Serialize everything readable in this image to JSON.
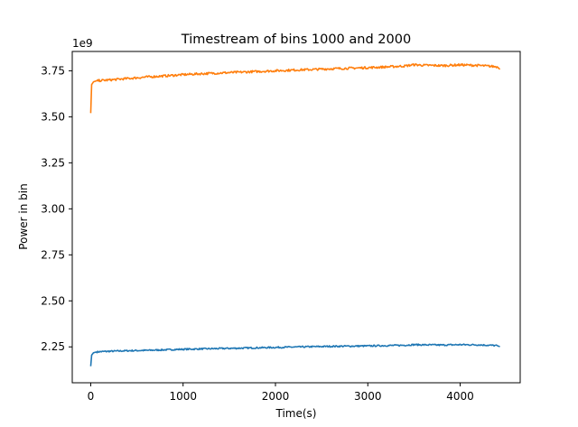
{
  "chart_data": {
    "type": "line",
    "title": "Timestream of bins 1000 and 2000",
    "xlabel": "Time(s)",
    "ylabel": "Power in bin",
    "y_offset_label": "1e9",
    "xlim": [
      -200,
      4650
    ],
    "ylim": [
      2.055,
      3.855
    ],
    "x_ticks": [
      0,
      1000,
      2000,
      3000,
      4000
    ],
    "x_tick_labels": [
      "0",
      "1000",
      "2000",
      "3000",
      "4000"
    ],
    "y_ticks": [
      2.25,
      2.5,
      2.75,
      3.0,
      3.25,
      3.5,
      3.75
    ],
    "y_tick_labels": [
      "2.25",
      "2.50",
      "2.75",
      "3.00",
      "3.25",
      "3.50",
      "3.75"
    ],
    "grid": false,
    "series": [
      {
        "color": "#1f77b4",
        "x": [
          0,
          10,
          30,
          60,
          100,
          200,
          400,
          600,
          800,
          1000,
          1200,
          1400,
          1600,
          1800,
          2000,
          2200,
          2400,
          2600,
          2800,
          3000,
          3200,
          3400,
          3500,
          3600,
          3800,
          4000,
          4200,
          4400,
          4430
        ],
        "y": [
          2.145,
          2.205,
          2.218,
          2.222,
          2.224,
          2.226,
          2.229,
          2.231,
          2.234,
          2.237,
          2.239,
          2.241,
          2.243,
          2.245,
          2.247,
          2.249,
          2.251,
          2.253,
          2.254,
          2.255,
          2.257,
          2.259,
          2.262,
          2.261,
          2.26,
          2.262,
          2.261,
          2.257,
          2.251
        ]
      },
      {
        "color": "#ff7f0e",
        "x": [
          0,
          10,
          30,
          60,
          100,
          200,
          400,
          600,
          800,
          1000,
          1200,
          1400,
          1600,
          1800,
          2000,
          2200,
          2400,
          2600,
          2800,
          3000,
          3200,
          3400,
          3500,
          3600,
          3800,
          4000,
          4200,
          4400,
          4430
        ],
        "y": [
          3.52,
          3.675,
          3.69,
          3.695,
          3.697,
          3.7,
          3.708,
          3.716,
          3.722,
          3.729,
          3.734,
          3.738,
          3.742,
          3.746,
          3.75,
          3.754,
          3.757,
          3.761,
          3.764,
          3.767,
          3.771,
          3.776,
          3.783,
          3.78,
          3.778,
          3.782,
          3.779,
          3.772,
          3.758
        ]
      }
    ]
  }
}
